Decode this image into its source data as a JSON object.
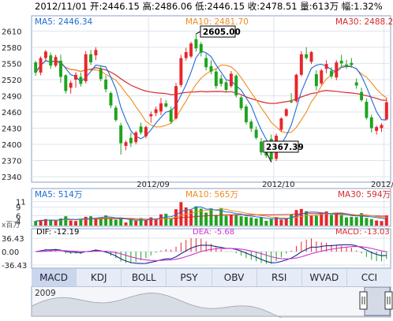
{
  "header": {
    "text": "2012/11/01 开:2446.15 高:2486.06 低:2446.15 收:2478.51 量:613万 幅:1.32%"
  },
  "price_panel": {
    "ma5_label": "MA5: 2446.34",
    "ma10_label": "MA10: 2481.70",
    "ma30_label": "MA30: 2488.20",
    "high_callout": "2605.00",
    "low_callout": "2367.39",
    "yticks": [
      "2610",
      "2580",
      "2550",
      "2520",
      "2490",
      "2460",
      "2430",
      "2400",
      "2370",
      "2340"
    ],
    "xticks": [
      "2012/09",
      "2012/10",
      "2012/"
    ]
  },
  "volume_panel": {
    "ma5_label": "MA5: 514万",
    "ma10_label": "MA10: 565万",
    "ma30_label": "MA30: 594万",
    "yticks": [
      "11",
      "9",
      "6",
      "4"
    ],
    "unit_label": "x百万"
  },
  "macd_panel": {
    "dif_label": "DIF: -12.19",
    "dea_label": "DEA: -5.68",
    "macd_label": "MACD: -13.03",
    "yticks": [
      "36.43",
      "0.00",
      "-36.43"
    ]
  },
  "tabs": [
    "MACD",
    "KDJ",
    "BOLL",
    "PSY",
    "OBV",
    "RSI",
    "WVAD",
    "CCI"
  ],
  "navigator": {
    "year_label": "2009"
  },
  "colors": {
    "up": "#e8262b",
    "down": "#1fa31f",
    "ma5": "#1c6bd6",
    "ma10": "#f08c1e",
    "ma30": "#d62c2c",
    "dea": "#cc33cc"
  },
  "chart_data": {
    "type": "candlestick",
    "ohlc": [
      [
        2552,
        2555,
        2527,
        2533
      ],
      [
        2533,
        2563,
        2528,
        2560
      ],
      [
        2560,
        2575,
        2555,
        2572
      ],
      [
        2565,
        2570,
        2540,
        2546
      ],
      [
        2546,
        2566,
        2543,
        2562
      ],
      [
        2555,
        2566,
        2514,
        2525
      ],
      [
        2528,
        2530,
        2494,
        2499
      ],
      [
        2505,
        2518,
        2494,
        2514
      ],
      [
        2520,
        2534,
        2505,
        2529
      ],
      [
        2525,
        2533,
        2507,
        2512
      ],
      [
        2517,
        2573,
        2513,
        2567
      ],
      [
        2567,
        2575,
        2547,
        2552
      ],
      [
        2565,
        2580,
        2556,
        2575
      ],
      [
        2540,
        2546,
        2517,
        2521
      ],
      [
        2520,
        2527,
        2496,
        2502
      ],
      [
        2495,
        2498,
        2467,
        2472
      ],
      [
        2468,
        2472,
        2442,
        2445
      ],
      [
        2435,
        2440,
        2381,
        2402
      ],
      [
        2397,
        2407,
        2389,
        2404
      ],
      [
        2412,
        2422,
        2395,
        2402
      ],
      [
        2404,
        2425,
        2400,
        2422
      ],
      [
        2433,
        2440,
        2418,
        2422
      ],
      [
        2415,
        2435,
        2411,
        2432
      ],
      [
        2452,
        2461,
        2440,
        2456
      ],
      [
        2458,
        2470,
        2452,
        2465
      ],
      [
        2461,
        2486,
        2454,
        2476
      ],
      [
        2476,
        2482,
        2468,
        2470
      ],
      [
        2464,
        2470,
        2438,
        2442
      ],
      [
        2448,
        2514,
        2446,
        2508
      ],
      [
        2510,
        2566,
        2506,
        2560
      ],
      [
        2560,
        2579,
        2555,
        2571
      ],
      [
        2563,
        2590,
        2560,
        2587
      ],
      [
        2595,
        2605,
        2572,
        2578
      ],
      [
        2586,
        2590,
        2563,
        2570
      ],
      [
        2560,
        2568,
        2537,
        2543
      ],
      [
        2545,
        2556,
        2530,
        2535
      ],
      [
        2535,
        2540,
        2503,
        2508
      ],
      [
        2522,
        2529,
        2507,
        2512
      ],
      [
        2515,
        2518,
        2497,
        2501
      ],
      [
        2508,
        2536,
        2505,
        2531
      ],
      [
        2527,
        2530,
        2487,
        2491
      ],
      [
        2487,
        2490,
        2463,
        2467
      ],
      [
        2470,
        2474,
        2437,
        2441
      ],
      [
        2442,
        2446,
        2423,
        2429
      ],
      [
        2427,
        2433,
        2409,
        2412
      ],
      [
        2405,
        2412,
        2380,
        2385
      ],
      [
        2392,
        2396,
        2375,
        2379
      ],
      [
        2410,
        2418,
        2367,
        2372
      ],
      [
        2373,
        2420,
        2369,
        2416
      ],
      [
        2427,
        2450,
        2423,
        2448
      ],
      [
        2453,
        2467,
        2451,
        2465
      ],
      [
        2480,
        2495,
        2476,
        2478
      ],
      [
        2480,
        2531,
        2477,
        2529
      ],
      [
        2529,
        2573,
        2526,
        2567
      ],
      [
        2567,
        2580,
        2557,
        2560
      ],
      [
        2553,
        2573,
        2549,
        2571
      ],
      [
        2530,
        2537,
        2500,
        2508
      ],
      [
        2513,
        2540,
        2510,
        2537
      ],
      [
        2540,
        2556,
        2532,
        2549
      ],
      [
        2536,
        2543,
        2522,
        2526
      ],
      [
        2524,
        2556,
        2519,
        2552
      ],
      [
        2555,
        2566,
        2545,
        2550
      ],
      [
        2548,
        2557,
        2540,
        2545
      ],
      [
        2551,
        2560,
        2542,
        2547
      ],
      [
        2515,
        2522,
        2503,
        2509
      ],
      [
        2497,
        2505,
        2479,
        2482
      ],
      [
        2479,
        2485,
        2446,
        2449
      ],
      [
        2450,
        2455,
        2422,
        2430
      ],
      [
        2425,
        2435,
        2418,
        2432
      ],
      [
        2430,
        2439,
        2423,
        2436
      ],
      [
        2446,
        2486,
        2446,
        2478
      ]
    ],
    "volume_unit": "百万",
    "volume": [
      4.1,
      4.5,
      4.8,
      4.4,
      4.2,
      5.0,
      5.8,
      4.3,
      4.1,
      4.9,
      5.6,
      5.8,
      5.2,
      5.3,
      6.1,
      5.0,
      4.6,
      5.1,
      3.6,
      4.5,
      4.2,
      5.2,
      4.3,
      5.4,
      4.6,
      6.5,
      6.7,
      5.1,
      8.3,
      10.8,
      8.9,
      8.0,
      9.3,
      8.5,
      7.1,
      8.6,
      6.3,
      8.7,
      6.0,
      6.4,
      6.2,
      5.8,
      5.6,
      5.4,
      5.0,
      5.3,
      4.2,
      4.8,
      5.5,
      4.6,
      5.2,
      6.4,
      8.0,
      8.4,
      7.6,
      6.2,
      6.0,
      7.1,
      7.5,
      6.3,
      6.9,
      6.2,
      5.4,
      5.6,
      5.5,
      6.9,
      5.2,
      4.8,
      4.3,
      4.1,
      6.1
    ],
    "series": [
      {
        "name": "MA5",
        "type": "line"
      },
      {
        "name": "MA10",
        "type": "line"
      },
      {
        "name": "MA30",
        "type": "line"
      },
      {
        "name": "DIF",
        "type": "line"
      },
      {
        "name": "DEA",
        "type": "line"
      },
      {
        "name": "MACD",
        "type": "bar"
      }
    ],
    "ylim_price": [
      2340,
      2615
    ],
    "ylim_volume": [
      2.5,
      12
    ],
    "ylim_macd": [
      -36.43,
      36.43
    ],
    "grid": true
  }
}
